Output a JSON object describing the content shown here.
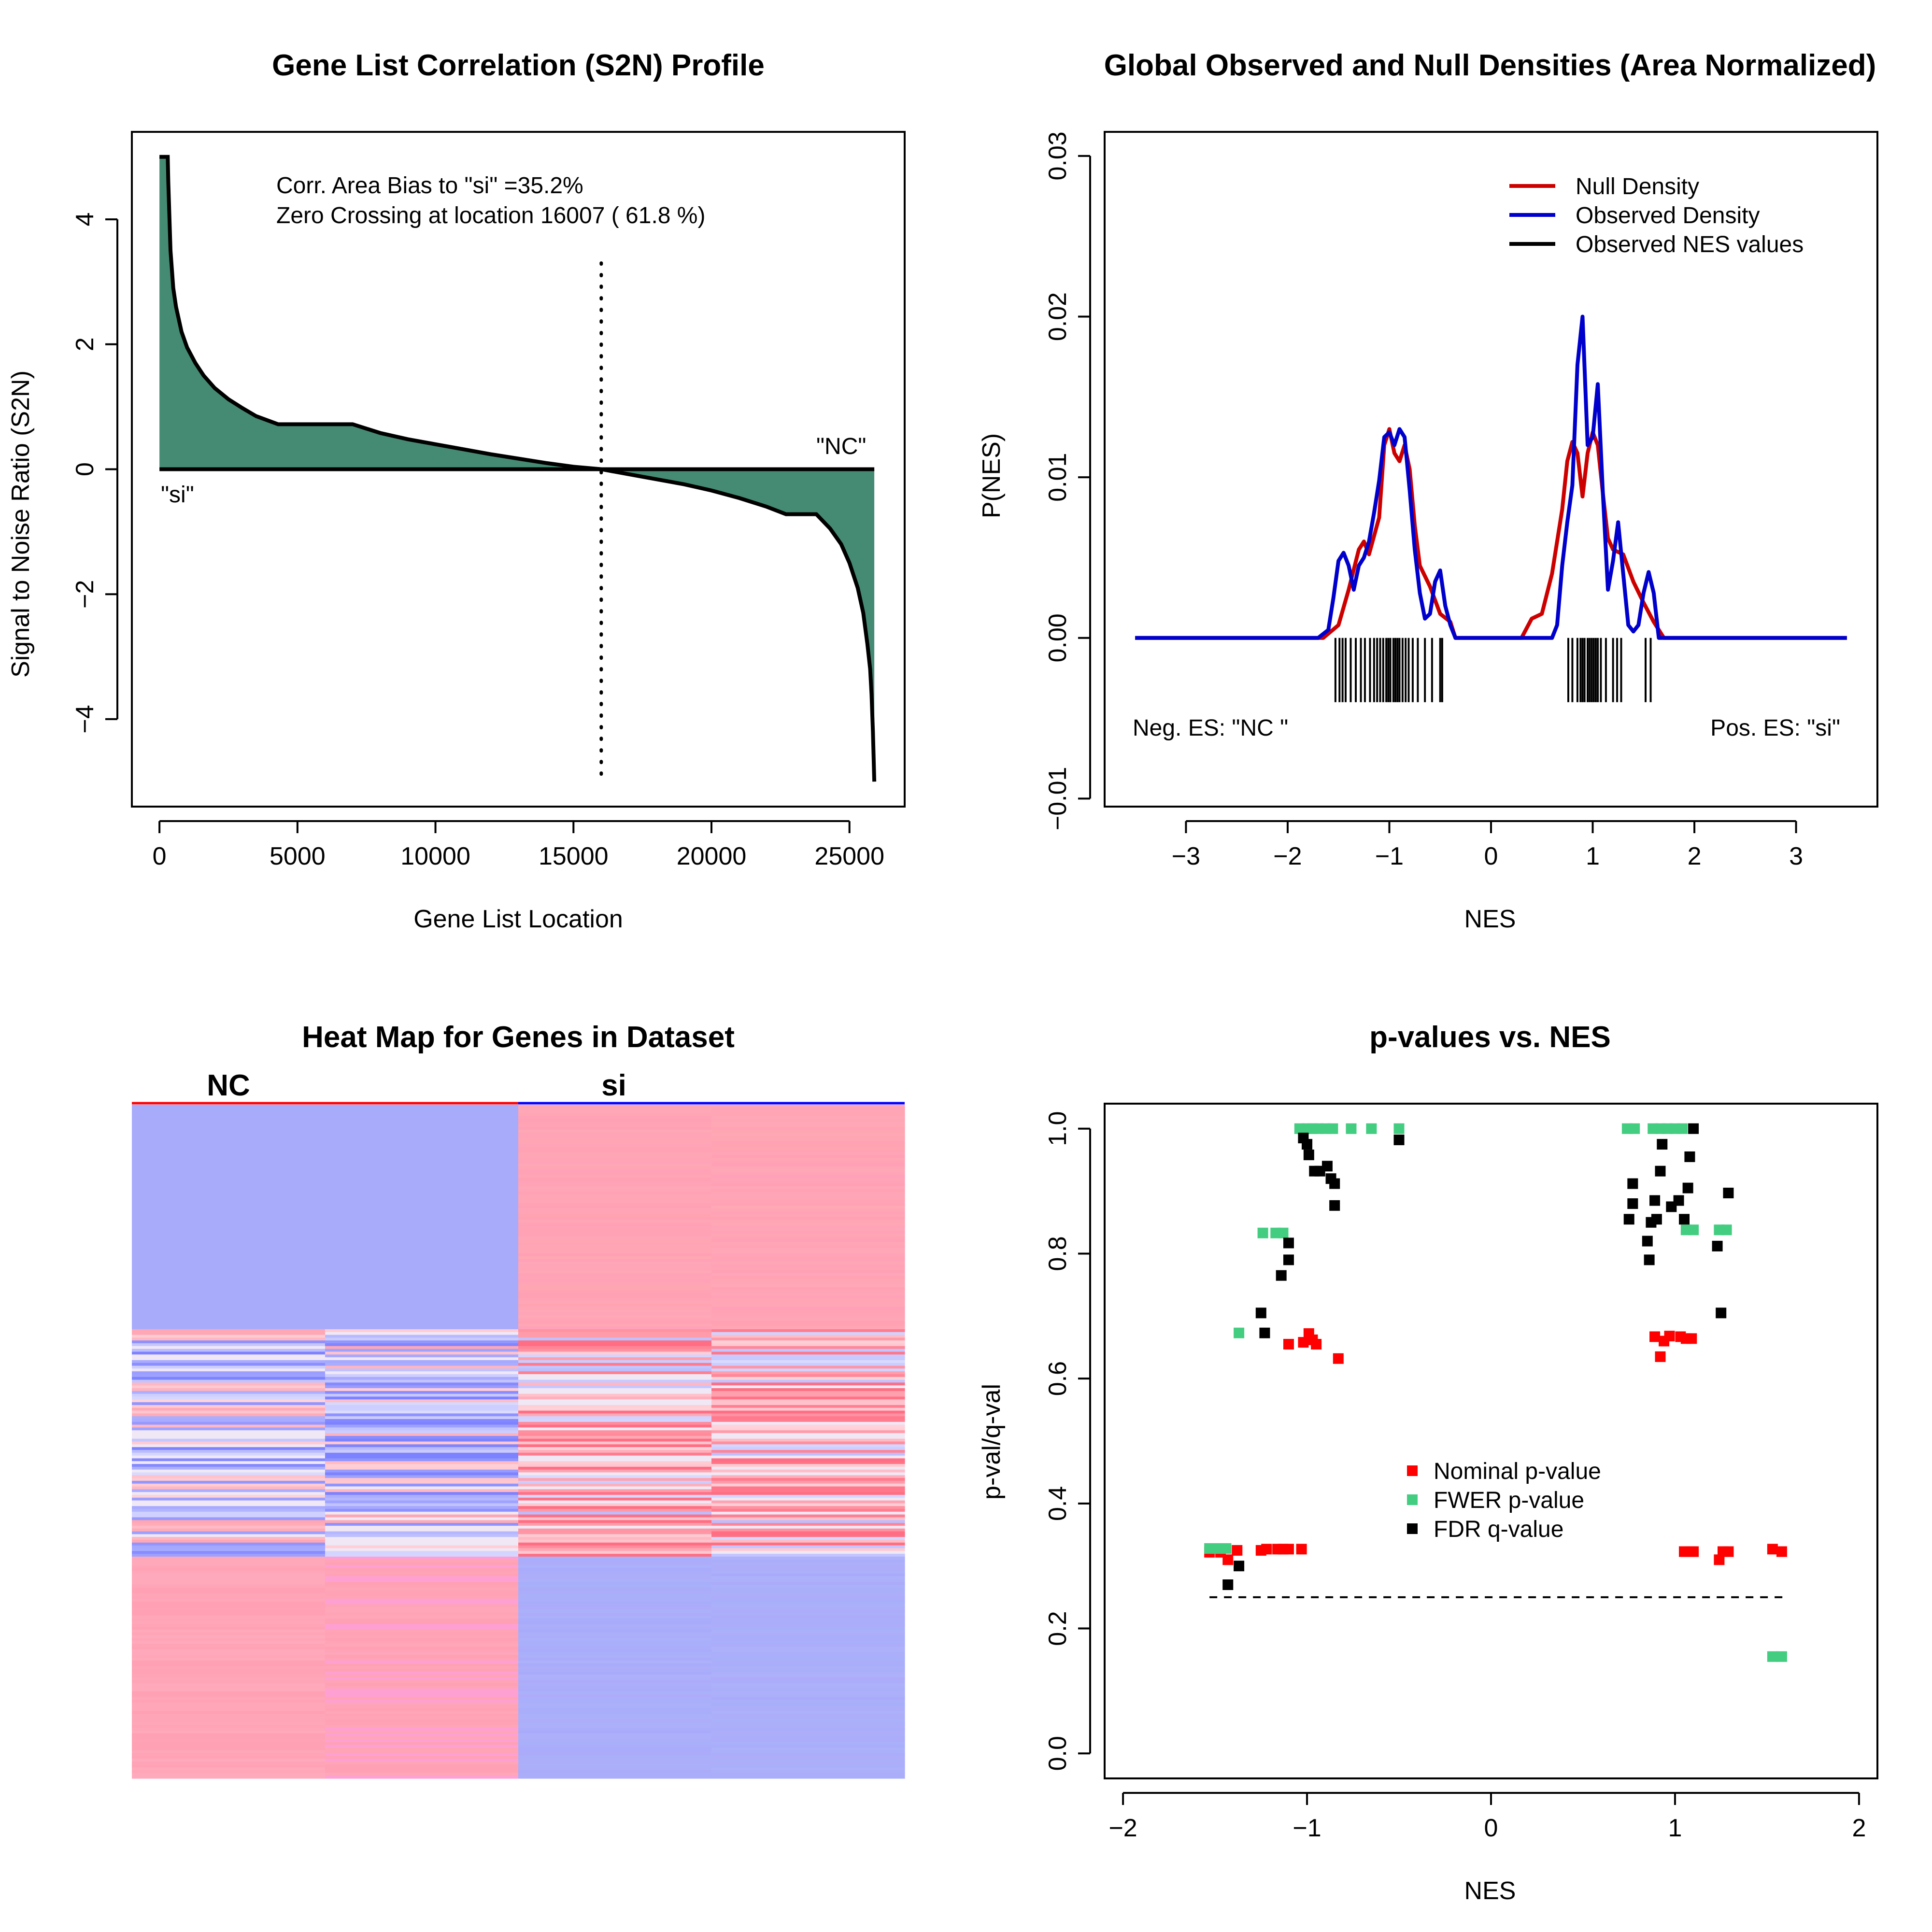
{
  "chart_data": [
    {
      "type": "area",
      "title": "Gene List Correlation (S2N) Profile",
      "xlabel": "Gene List Location",
      "ylabel": "Signal to Noise Ratio (S2N)",
      "xlim": [
        -1000,
        27000
      ],
      "ylim": [
        -5.4,
        5.4
      ],
      "xticks": [
        0,
        5000,
        10000,
        15000,
        20000,
        25000
      ],
      "xtick_labels": [
        "0",
        "5000",
        "10000",
        "15000",
        "20000",
        "25000"
      ],
      "yticks": [
        -4,
        -2,
        0,
        2,
        4
      ],
      "ytick_labels": [
        "−4",
        "−2",
        "0",
        "2",
        "4"
      ],
      "fill_color": "#458B74",
      "x": [
        0,
        300,
        320,
        400,
        450,
        500,
        600,
        700,
        800,
        1000,
        1300,
        1600,
        2000,
        2500,
        3000,
        3500,
        4300,
        7000,
        8000,
        9000,
        10000,
        11000,
        12000,
        13000,
        14000,
        15000,
        16007,
        17000,
        18000,
        19000,
        20000,
        21000,
        22000,
        22700,
        23800,
        24300,
        24700,
        25000,
        25300,
        25500,
        25650,
        25750,
        25800,
        25850,
        25900
      ],
      "y": [
        5.0,
        5.0,
        4.6,
        3.5,
        3.2,
        2.9,
        2.6,
        2.4,
        2.2,
        1.95,
        1.7,
        1.5,
        1.3,
        1.12,
        0.98,
        0.85,
        0.72,
        0.72,
        0.58,
        0.48,
        0.4,
        0.32,
        0.24,
        0.17,
        0.1,
        0.04,
        0.0,
        -0.08,
        -0.16,
        -0.24,
        -0.34,
        -0.46,
        -0.6,
        -0.72,
        -0.72,
        -0.95,
        -1.2,
        -1.5,
        -1.9,
        -2.3,
        -2.8,
        -3.2,
        -3.6,
        -4.2,
        -5.0
      ],
      "annotations": {
        "bias": "Corr. Area Bias to \"si\" =35.2%",
        "zero_crossing": "Zero Crossing at location  16007  ( 61.8  %)",
        "pos_label": "\"si\"",
        "neg_label": "\"NC\""
      },
      "zero_crossing": 16007,
      "vline_range": [
        -5.0,
        3.3
      ]
    },
    {
      "type": "line",
      "title": "Global Observed and Null Densities (Area Normalized)",
      "xlabel": "NES",
      "ylabel": "P(NES)",
      "xlim": [
        -3.8,
        3.8
      ],
      "ylim": [
        -0.0105,
        0.0315
      ],
      "xticks": [
        -3,
        -2,
        -1,
        0,
        1,
        2,
        3
      ],
      "xtick_labels": [
        "−3",
        "−2",
        "−1",
        "0",
        "1",
        "2",
        "3"
      ],
      "yticks": [
        -0.01,
        0.0,
        0.01,
        0.02,
        0.03
      ],
      "ytick_labels": [
        "−0.01",
        "0.00",
        "0.01",
        "0.02",
        "0.03"
      ],
      "series": [
        {
          "name": "Null Density",
          "color": "#CD0000",
          "x": [
            -3.5,
            -1.65,
            -1.5,
            -1.4,
            -1.3,
            -1.25,
            -1.2,
            -1.1,
            -1.05,
            -1.0,
            -0.95,
            -0.9,
            -0.85,
            -0.8,
            -0.75,
            -0.7,
            -0.6,
            -0.5,
            -0.4,
            -0.35,
            0.3,
            0.4,
            0.5,
            0.6,
            0.7,
            0.75,
            0.8,
            0.85,
            0.9,
            0.95,
            1.0,
            1.05,
            1.1,
            1.15,
            1.2,
            1.3,
            1.4,
            1.5,
            1.6,
            1.7,
            3.5
          ],
          "y": [
            0,
            0,
            0.0008,
            0.003,
            0.0055,
            0.006,
            0.0052,
            0.0075,
            0.012,
            0.013,
            0.0115,
            0.011,
            0.012,
            0.0105,
            0.007,
            0.0045,
            0.0032,
            0.0015,
            0.001,
            0,
            0,
            0.0012,
            0.0015,
            0.004,
            0.008,
            0.011,
            0.0122,
            0.0115,
            0.0088,
            0.0115,
            0.0128,
            0.012,
            0.009,
            0.0062,
            0.0055,
            0.0052,
            0.0035,
            0.0022,
            0.001,
            0,
            0
          ]
        },
        {
          "name": "Observed Density",
          "color": "#0000CD",
          "x": [
            -3.5,
            -1.7,
            -1.6,
            -1.55,
            -1.5,
            -1.45,
            -1.4,
            -1.35,
            -1.3,
            -1.25,
            -1.2,
            -1.15,
            -1.1,
            -1.05,
            -1.0,
            -0.95,
            -0.9,
            -0.85,
            -0.8,
            -0.75,
            -0.7,
            -0.65,
            -0.6,
            -0.55,
            -0.5,
            -0.45,
            -0.4,
            -0.35,
            0.6,
            0.65,
            0.7,
            0.75,
            0.8,
            0.85,
            0.9,
            0.95,
            1.0,
            1.05,
            1.1,
            1.15,
            1.2,
            1.25,
            1.3,
            1.35,
            1.4,
            1.45,
            1.5,
            1.55,
            1.6,
            1.65,
            3.5
          ],
          "y": [
            0,
            0,
            0.0005,
            0.0025,
            0.0048,
            0.0053,
            0.0045,
            0.003,
            0.0045,
            0.005,
            0.006,
            0.0078,
            0.0098,
            0.0125,
            0.0128,
            0.012,
            0.013,
            0.0125,
            0.0092,
            0.0055,
            0.0028,
            0.0012,
            0.0015,
            0.0035,
            0.0042,
            0.002,
            0.0008,
            0,
            0,
            0.0008,
            0.0045,
            0.0072,
            0.0095,
            0.017,
            0.02,
            0.012,
            0.0125,
            0.0158,
            0.009,
            0.003,
            0.0048,
            0.0072,
            0.004,
            0.0008,
            0.0004,
            0.0008,
            0.0028,
            0.0041,
            0.0028,
            0,
            0
          ]
        },
        {
          "name": "Observed NES values",
          "color": "#000000",
          "type": "rug",
          "values": [
            -1.53,
            -1.49,
            -1.46,
            -1.43,
            -1.38,
            -1.33,
            -1.28,
            -1.24,
            -1.19,
            -1.15,
            -1.12,
            -1.09,
            -1.06,
            -1.03,
            -1.01,
            -0.99,
            -0.96,
            -0.94,
            -0.92,
            -0.9,
            -0.87,
            -0.84,
            -0.81,
            -0.77,
            -0.72,
            -0.65,
            -0.58,
            -0.5,
            -0.48,
            0.76,
            0.8,
            0.85,
            0.88,
            0.9,
            0.92,
            0.95,
            0.97,
            0.99,
            1.01,
            1.03,
            1.05,
            1.08,
            1.13,
            1.2,
            1.24,
            1.28,
            1.52,
            1.57
          ]
        }
      ],
      "legend": "top-right",
      "annotations": {
        "neg": "Neg. ES: \"NC \"",
        "pos": "Pos. ES: \"si\""
      }
    },
    {
      "type": "heatmap",
      "title": "Heat Map for Genes in Dataset",
      "group_labels": [
        "NC",
        "si"
      ],
      "group_colors": [
        "#FF0000",
        "#0000FF"
      ],
      "columns": 4,
      "bands": [
        {
          "rows": 0.33,
          "colors": [
            "#A8ABFA",
            "#A8ABFA",
            "#FFA3B3",
            "#FFA2B4"
          ]
        },
        {
          "rows": 0.33,
          "colors": [
            "mixed",
            "mixed",
            "mixed",
            "mixed"
          ]
        },
        {
          "rows": 0.34,
          "colors": [
            "#FFA3B3",
            "#FFA3B5",
            "#A8ABFA",
            "#A8ABFA"
          ]
        }
      ]
    },
    {
      "type": "scatter",
      "title": "p-values vs. NES",
      "xlabel": "NES",
      "ylabel": "p-val/q-val",
      "xlim": [
        -2.1,
        2.1
      ],
      "ylim": [
        -0.04,
        1.04
      ],
      "xticks": [
        -2,
        -1,
        0,
        1,
        2
      ],
      "xtick_labels": [
        "−2",
        "−1",
        "0",
        "1",
        "2"
      ],
      "yticks": [
        0.0,
        0.2,
        0.4,
        0.6,
        0.8,
        1.0
      ],
      "ytick_labels": [
        "0.0",
        "0.2",
        "0.4",
        "0.6",
        "0.8",
        "1.0"
      ],
      "hline": {
        "y": 0.25,
        "x_range": [
          -1.53,
          1.6
        ]
      },
      "legend": "center",
      "series": [
        {
          "name": "Nominal p-value",
          "color": "#FF0000",
          "points": [
            [
              -1.53,
              0.322
            ],
            [
              -1.47,
              0.322
            ],
            [
              -1.43,
              0.31
            ],
            [
              -1.38,
              0.325
            ],
            [
              -1.25,
              0.325
            ],
            [
              -1.22,
              0.327
            ],
            [
              -1.16,
              0.327
            ],
            [
              -1.13,
              0.327
            ],
            [
              -1.1,
              0.327
            ],
            [
              -1.03,
              0.327
            ],
            [
              -1.1,
              0.655
            ],
            [
              -1.02,
              0.658
            ],
            [
              -0.99,
              0.672
            ],
            [
              -0.97,
              0.662
            ],
            [
              -0.95,
              0.655
            ],
            [
              -0.83,
              0.632
            ],
            [
              1.05,
              0.323
            ],
            [
              1.08,
              0.323
            ],
            [
              1.1,
              0.323
            ],
            [
              1.24,
              0.31
            ],
            [
              1.26,
              0.323
            ],
            [
              1.29,
              0.323
            ],
            [
              1.53,
              0.327
            ],
            [
              1.58,
              0.323
            ],
            [
              0.89,
              0.667
            ],
            [
              0.92,
              0.635
            ],
            [
              0.94,
              0.66
            ],
            [
              0.97,
              0.668
            ],
            [
              1.03,
              0.667
            ],
            [
              1.06,
              0.664
            ],
            [
              1.09,
              0.664
            ]
          ]
        },
        {
          "name": "FWER p-value",
          "color": "#43CD80",
          "points": [
            [
              -1.53,
              0.328
            ],
            [
              -1.48,
              0.328
            ],
            [
              -1.44,
              0.328
            ],
            [
              -1.37,
              0.673
            ],
            [
              -1.24,
              0.833
            ],
            [
              -1.17,
              0.833
            ],
            [
              -1.13,
              0.833
            ],
            [
              -1.04,
              1.0
            ],
            [
              -1.0,
              1.0
            ],
            [
              -0.97,
              1.0
            ],
            [
              -0.94,
              1.0
            ],
            [
              -0.9,
              1.0
            ],
            [
              -0.86,
              1.0
            ],
            [
              -0.76,
              1.0
            ],
            [
              -0.65,
              1.0
            ],
            [
              -0.5,
              1.0
            ],
            [
              0.74,
              1.0
            ],
            [
              0.78,
              1.0
            ],
            [
              0.88,
              1.0
            ],
            [
              0.92,
              1.0
            ],
            [
              0.96,
              1.0
            ],
            [
              1.0,
              1.0
            ],
            [
              1.04,
              1.0
            ],
            [
              1.06,
              0.838
            ],
            [
              1.1,
              0.838
            ],
            [
              1.24,
              0.838
            ],
            [
              1.28,
              0.838
            ],
            [
              1.53,
              0.155
            ],
            [
              1.58,
              0.155
            ]
          ]
        },
        {
          "name": "FDR q-value",
          "color": "#000000",
          "points": [
            [
              -1.43,
              0.27
            ],
            [
              -1.37,
              0.3
            ],
            [
              -1.25,
              0.705
            ],
            [
              -1.23,
              0.673
            ],
            [
              -1.14,
              0.765
            ],
            [
              -1.1,
              0.79
            ],
            [
              -1.1,
              0.817
            ],
            [
              -1.02,
              0.985
            ],
            [
              -1.0,
              0.975
            ],
            [
              -0.99,
              0.958
            ],
            [
              -0.96,
              0.932
            ],
            [
              -0.93,
              0.932
            ],
            [
              -0.89,
              0.94
            ],
            [
              -0.87,
              0.92
            ],
            [
              -0.85,
              0.912
            ],
            [
              -0.85,
              0.877
            ],
            [
              -0.5,
              0.982
            ],
            [
              0.75,
              0.855
            ],
            [
              0.77,
              0.912
            ],
            [
              0.77,
              0.88
            ],
            [
              0.85,
              0.82
            ],
            [
              0.86,
              0.79
            ],
            [
              0.87,
              0.85
            ],
            [
              0.89,
              0.885
            ],
            [
              0.9,
              0.855
            ],
            [
              0.92,
              0.932
            ],
            [
              0.93,
              0.975
            ],
            [
              0.98,
              0.875
            ],
            [
              1.02,
              0.885
            ],
            [
              1.05,
              0.855
            ],
            [
              1.07,
              0.905
            ],
            [
              1.08,
              0.955
            ],
            [
              1.1,
              1.0
            ],
            [
              1.23,
              0.812
            ],
            [
              1.25,
              0.705
            ],
            [
              1.29,
              0.897
            ]
          ]
        }
      ]
    }
  ]
}
